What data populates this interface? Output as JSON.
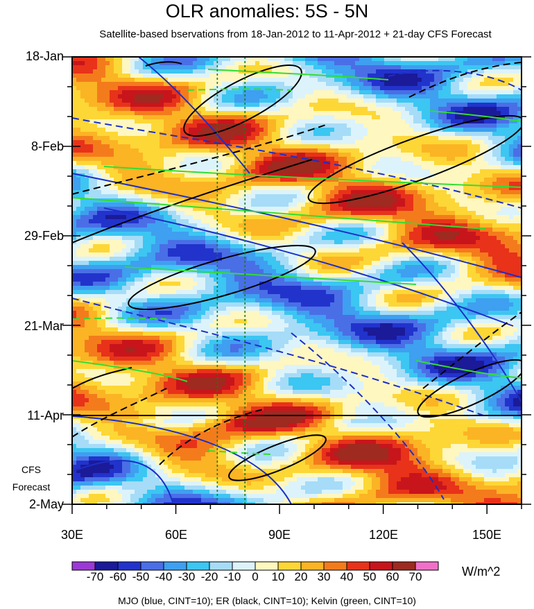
{
  "chart_data": {
    "type": "heatmap",
    "title": "OLR anomalies: 5S - 5N",
    "subtitle": "Satellite-based bservations from 18-Jan-2012 to 11-Apr-2012 + 21-day CFS Forecast",
    "x_axis": {
      "ticks": [
        "30E",
        "60E",
        "90E",
        "120E",
        "150E"
      ],
      "range": [
        30,
        160
      ]
    },
    "y_axis": {
      "ticks": [
        "18-Jan",
        "8-Feb",
        "29-Feb",
        "21-Mar",
        "11-Apr",
        "2-May"
      ],
      "direction": "time increases downward"
    },
    "forecast_label": [
      "CFS",
      "Forecast"
    ],
    "forecast_start": "11-Apr",
    "colorbar": {
      "labels": [
        "-70",
        "-60",
        "-50",
        "-40",
        "-30",
        "-20",
        "-10",
        "0",
        "10",
        "20",
        "30",
        "40",
        "50",
        "60",
        "70"
      ],
      "colors": [
        "#9c39d6",
        "#1b1a98",
        "#2233cc",
        "#4a6ee6",
        "#3f9ff0",
        "#3cc6f2",
        "#a6dcf7",
        "#dcf3fb",
        "#fff7c0",
        "#fdd736",
        "#fbb424",
        "#f47b1c",
        "#e8321a",
        "#c8151c",
        "#9e2a20",
        "#f070c8"
      ],
      "units": "W/m^2"
    },
    "reference_lines_longitude": [
      72,
      80
    ],
    "legend": "MJO (blue, CINT=10); ER (black, CINT=10); Kelvin (green, CINT=10)"
  }
}
